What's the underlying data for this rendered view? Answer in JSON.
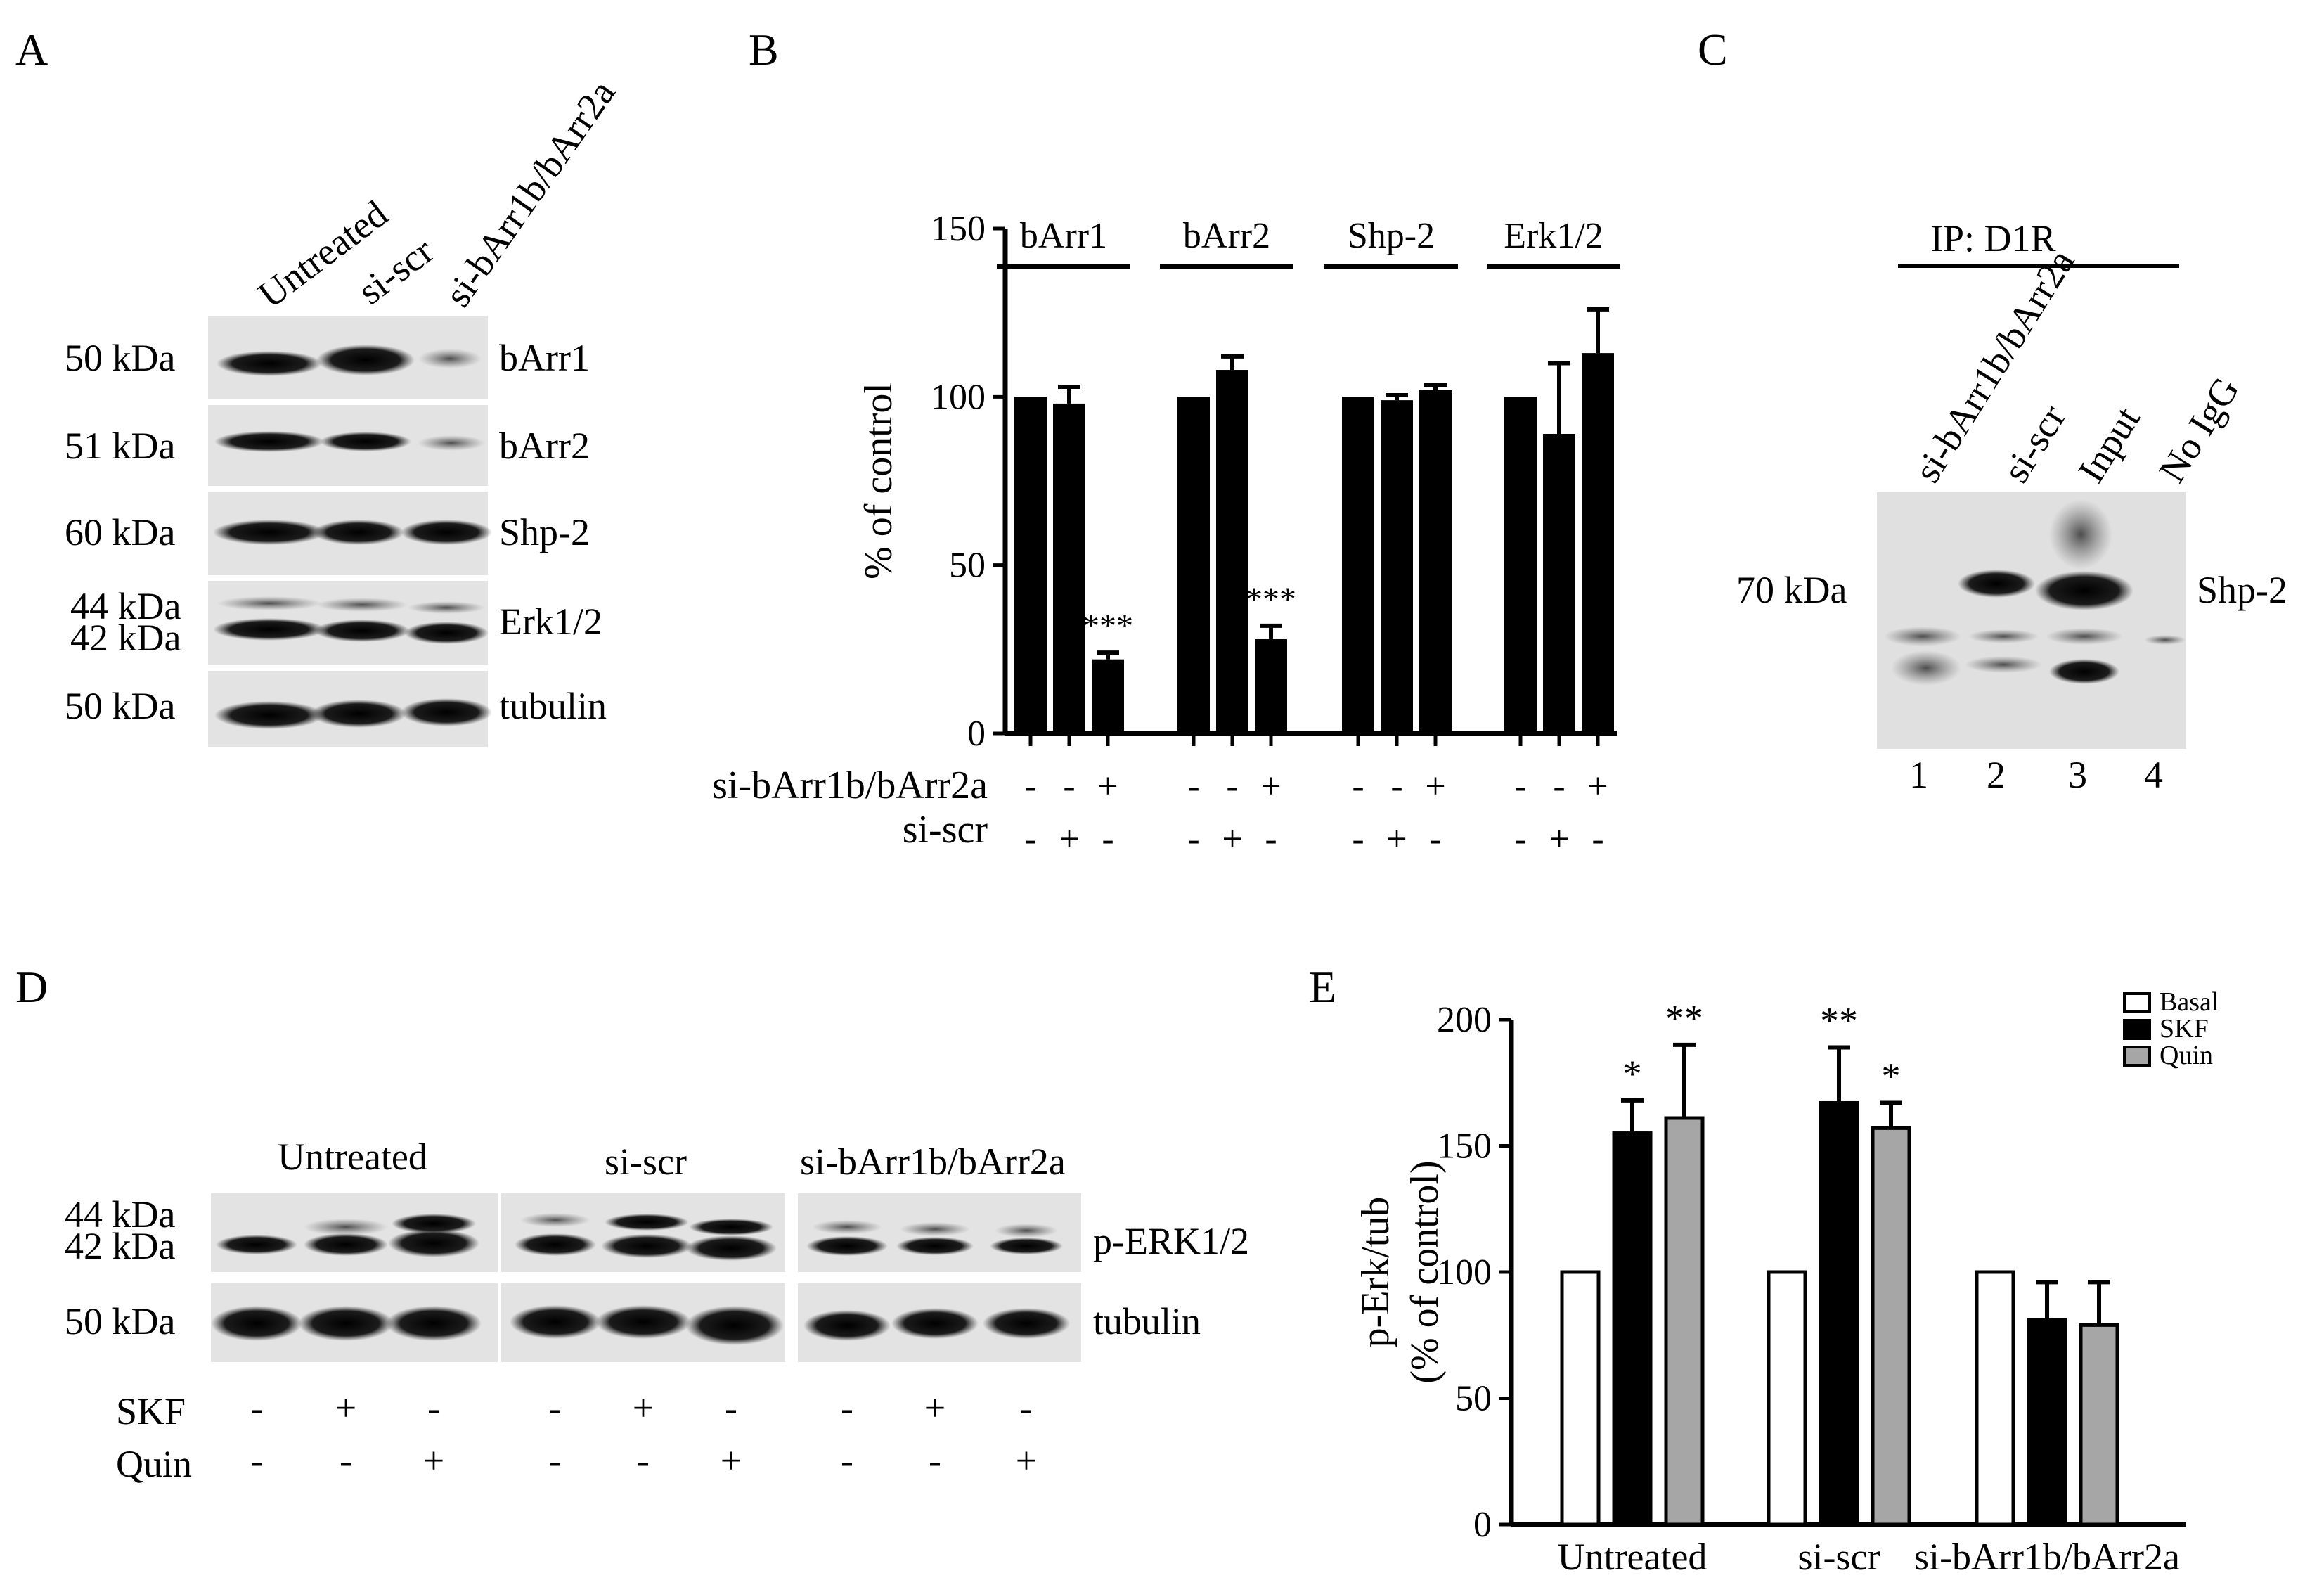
{
  "panels": {
    "A": {
      "letter": "A",
      "lanes": [
        "Untreated",
        "si-scr",
        "si-bArr1b/bArr2a"
      ],
      "rows": [
        {
          "mw": "50 kDa",
          "protein": "bArr1"
        },
        {
          "mw": "51 kDa",
          "protein": "bArr2"
        },
        {
          "mw": "60 kDa",
          "protein": "Shp-2"
        },
        {
          "mw": "44 kDa",
          "mw2": "42 kDa",
          "protein": "Erk1/2"
        },
        {
          "mw": "50 kDa",
          "protein": "tubulin"
        }
      ]
    },
    "B": {
      "letter": "B"
    },
    "C": {
      "letter": "C",
      "ip_label": "IP: D1R",
      "lanes": [
        "si-bArr1b/bArr2a",
        "si-scr",
        "Input",
        "No IgG"
      ],
      "lane_numbers": [
        "1",
        "2",
        "3",
        "4"
      ],
      "mw": "70 kDa",
      "protein": "Shp-2"
    },
    "D": {
      "letter": "D",
      "groups": [
        "Untreated",
        "si-scr",
        "si-bArr1b/bArr2a"
      ],
      "mw_top": "44 kDa",
      "mw_bottom": "42 kDa",
      "mw_tubulin": "50 kDa",
      "proteins": [
        "p-ERK1/2",
        "tubulin"
      ],
      "treatments": [
        {
          "name": "SKF",
          "signs": [
            "-",
            "+",
            "-",
            "-",
            "+",
            "-",
            "-",
            "+",
            "-"
          ]
        },
        {
          "name": "Quin",
          "signs": [
            "-",
            "-",
            "+",
            "-",
            "-",
            "+",
            "-",
            "-",
            "+"
          ]
        }
      ]
    },
    "E": {
      "letter": "E"
    }
  },
  "chart_data": [
    {
      "type": "bar",
      "panel": "B",
      "ylabel": "% of control",
      "ylim": [
        0,
        150
      ],
      "yticks": [
        0,
        50,
        100,
        150
      ],
      "groups": [
        {
          "label": "bArr1",
          "values": [
            100,
            98,
            22
          ],
          "errors": [
            0,
            5,
            2
          ],
          "annotations": [
            "",
            "",
            "***"
          ]
        },
        {
          "label": "bArr2",
          "values": [
            100,
            108,
            28
          ],
          "errors": [
            0,
            4,
            4
          ],
          "annotations": [
            "",
            "",
            "***"
          ]
        },
        {
          "label": "Shp-2",
          "values": [
            100,
            99,
            102
          ],
          "errors": [
            0,
            1.5,
            1.5
          ],
          "annotations": [
            "",
            "",
            ""
          ]
        },
        {
          "label": "Erk1/2",
          "values": [
            100,
            89,
            113
          ],
          "errors": [
            0,
            21,
            13
          ],
          "annotations": [
            "",
            "",
            ""
          ]
        }
      ],
      "conditions": [
        {
          "name": "si-bArr1b/bArr2a",
          "signs": [
            "-",
            "-",
            "+"
          ]
        },
        {
          "name": "si-scr",
          "signs": [
            "-",
            "+",
            "-"
          ]
        }
      ]
    },
    {
      "type": "bar",
      "panel": "E",
      "ylabel": "p-Erk/tub",
      "ylabel2": "(% of control)",
      "ylim": [
        0,
        200
      ],
      "yticks": [
        0,
        50,
        100,
        150,
        200
      ],
      "categories": [
        "Untreated",
        "si-scr",
        "si-bArr1b/bArr2a"
      ],
      "series": [
        {
          "name": "Basal",
          "color": "#ffffff",
          "values": [
            100,
            100,
            100
          ],
          "errors": [
            0,
            0,
            0
          ],
          "annotations": [
            "",
            "",
            ""
          ]
        },
        {
          "name": "SKF",
          "color": "#000000",
          "values": [
            155,
            167,
            81
          ],
          "errors": [
            13,
            22,
            15
          ],
          "annotations": [
            "*",
            "**",
            ""
          ]
        },
        {
          "name": "Quin",
          "color": "#a6a6a6",
          "values": [
            161,
            157,
            79
          ],
          "errors": [
            29,
            10,
            17
          ],
          "annotations": [
            "**",
            "*",
            ""
          ]
        }
      ],
      "legend": "top-right"
    }
  ]
}
